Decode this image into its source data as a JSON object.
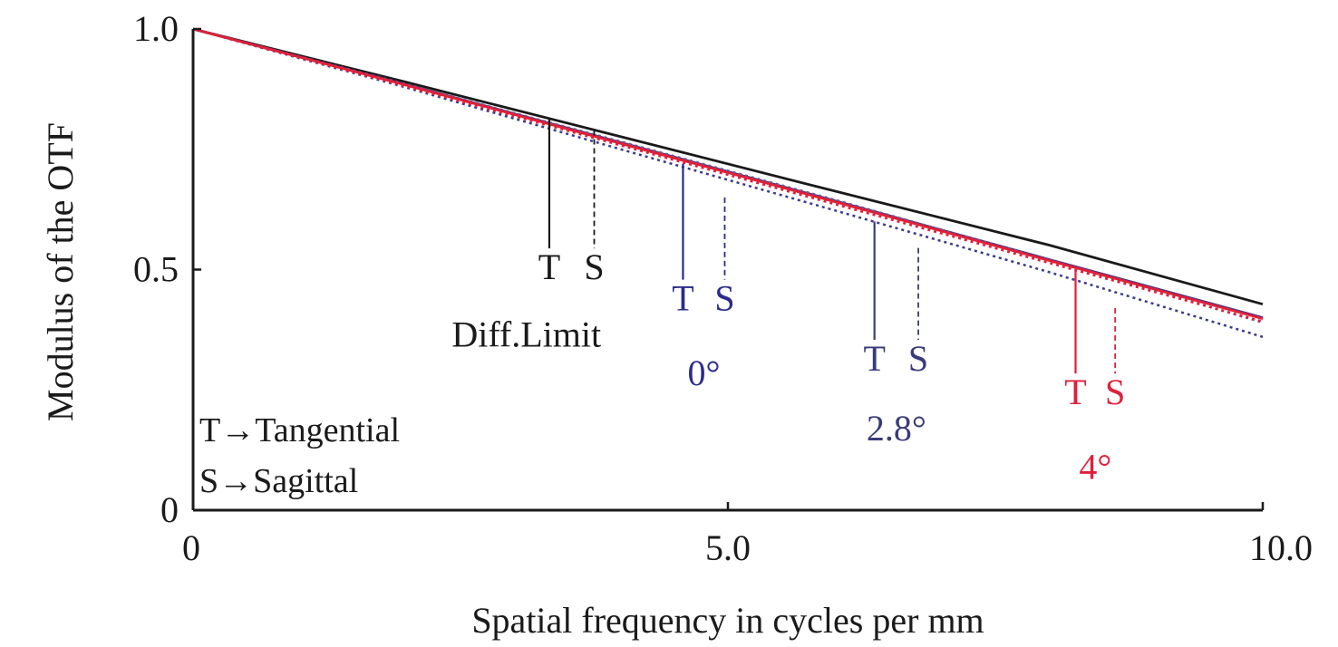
{
  "chart_data": {
    "type": "line",
    "title": "",
    "xlabel": "Spatial frequency in cycles per mm",
    "ylabel": "Modulus of the OTF",
    "xlim": [
      0,
      10
    ],
    "ylim": [
      0,
      1
    ],
    "xticks": [
      {
        "value": 0,
        "label": "0"
      },
      {
        "value": 5,
        "label": "5.0"
      },
      {
        "value": 10,
        "label": "10.0"
      }
    ],
    "yticks": [
      {
        "value": 0,
        "label": "0"
      },
      {
        "value": 0.5,
        "label": "0.5"
      },
      {
        "value": 1,
        "label": "1.0"
      }
    ],
    "grid": false,
    "series": [
      {
        "group": "Diff.Limit",
        "orientation": "T",
        "color": "#1a1a1a",
        "dash": "solid",
        "x": [
          0,
          2,
          4,
          6,
          8,
          10
        ],
        "y": [
          1.0,
          0.889,
          0.776,
          0.663,
          0.551,
          0.428
        ]
      },
      {
        "group": "0°",
        "orientation": "T",
        "color": "#2b2b7a",
        "dash": "solid",
        "x": [
          0,
          2,
          4,
          6,
          8,
          10
        ],
        "y": [
          1.0,
          0.884,
          0.764,
          0.643,
          0.521,
          0.4
        ]
      },
      {
        "group": "0°",
        "orientation": "S",
        "color": "#3a3a8c",
        "dash": "dotted",
        "x": [
          0,
          2,
          4,
          6,
          8,
          10
        ],
        "y": [
          1.0,
          0.878,
          0.75,
          0.623,
          0.495,
          0.36
        ]
      },
      {
        "group": "2.8°",
        "orientation": "T",
        "color": "#5a3a7a",
        "dash": "solid",
        "x": [
          0,
          2,
          4,
          6,
          8,
          10
        ],
        "y": [
          1.0,
          0.883,
          0.763,
          0.642,
          0.52,
          0.399
        ]
      },
      {
        "group": "2.8°",
        "orientation": "S",
        "color": "#6a5a8a",
        "dash": "dotted",
        "x": [
          0,
          2,
          4,
          6,
          8,
          10
        ],
        "y": [
          1.0,
          0.885,
          0.766,
          0.645,
          0.52,
          0.39
        ]
      },
      {
        "group": "4°",
        "orientation": "T",
        "color": "#e0203a",
        "dash": "solid",
        "x": [
          0,
          2,
          4,
          6,
          8,
          10
        ],
        "y": [
          1.0,
          0.883,
          0.762,
          0.641,
          0.519,
          0.398
        ]
      },
      {
        "group": "4°",
        "orientation": "S",
        "color": "#e0203a",
        "dash": "dotted",
        "x": [
          0,
          2,
          4,
          6,
          8,
          10
        ],
        "y": [
          1.0,
          0.88,
          0.758,
          0.636,
          0.514,
          0.392
        ]
      }
    ],
    "annotations": [
      {
        "group": "Diff.Limit",
        "color": "#1a1a1a",
        "t_x": 3.33,
        "t_y": 0.815,
        "s_x": 3.75,
        "s_y": 0.79,
        "t_label": "T",
        "s_label": "S",
        "caption": "Diff.Limit"
      },
      {
        "group": "0°",
        "color": "#2b2b8c",
        "t_x": 4.58,
        "t_y": 0.72,
        "s_x": 4.97,
        "s_y": 0.65,
        "t_label": "T",
        "s_label": "S",
        "caption": "0°"
      },
      {
        "group": "2.8°",
        "color": "#3a3a7a",
        "t_x": 6.37,
        "t_y": 0.6,
        "s_x": 6.78,
        "s_y": 0.545,
        "t_label": "T",
        "s_label": "S",
        "caption": "2.8°"
      },
      {
        "group": "4°",
        "color": "#e0203a",
        "t_x": 8.25,
        "t_y": 0.5,
        "s_x": 8.62,
        "s_y": 0.42,
        "t_label": "T",
        "s_label": "S",
        "caption": "4°"
      }
    ],
    "legend_text": [
      "T→Tangential",
      "S→Sagittal"
    ],
    "legend_position": "bottom-left"
  }
}
